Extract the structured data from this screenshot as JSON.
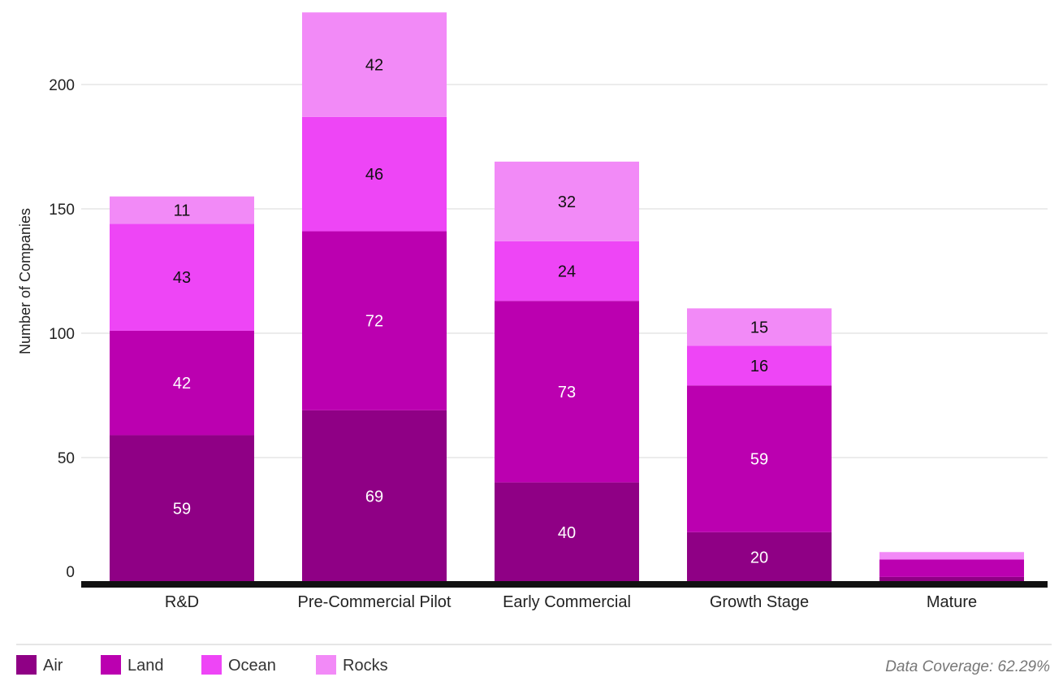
{
  "chart_data": {
    "type": "bar",
    "stacked": true,
    "ylabel": "Number of Companies",
    "ylim": [
      0,
      230
    ],
    "yticks": [
      0,
      50,
      100,
      150,
      200
    ],
    "grid": true,
    "legend_position": "bottom-left",
    "categories": [
      "R&D",
      "Pre-Commercial Pilot",
      "Early Commercial",
      "Growth Stage",
      "Mature"
    ],
    "series": [
      {
        "name": "Air",
        "color": "#8f0085",
        "values": [
          59,
          69,
          40,
          20,
          2
        ],
        "labels": [
          "59",
          "69",
          "40",
          "20",
          ""
        ]
      },
      {
        "name": "Land",
        "color": "#bb00b0",
        "values": [
          42,
          72,
          73,
          59,
          7
        ],
        "labels": [
          "42",
          "72",
          "73",
          "59",
          ""
        ]
      },
      {
        "name": "Ocean",
        "color": "#ee45f6",
        "values": [
          43,
          46,
          24,
          16,
          0
        ],
        "labels": [
          "43",
          "46",
          "24",
          "16",
          ""
        ]
      },
      {
        "name": "Rocks",
        "color": "#f28af7",
        "values": [
          11,
          42,
          32,
          15,
          3
        ],
        "labels": [
          "11",
          "42",
          "32",
          "15",
          ""
        ]
      }
    ]
  },
  "footer": {
    "coverage": "Data Coverage: 62.29%"
  }
}
